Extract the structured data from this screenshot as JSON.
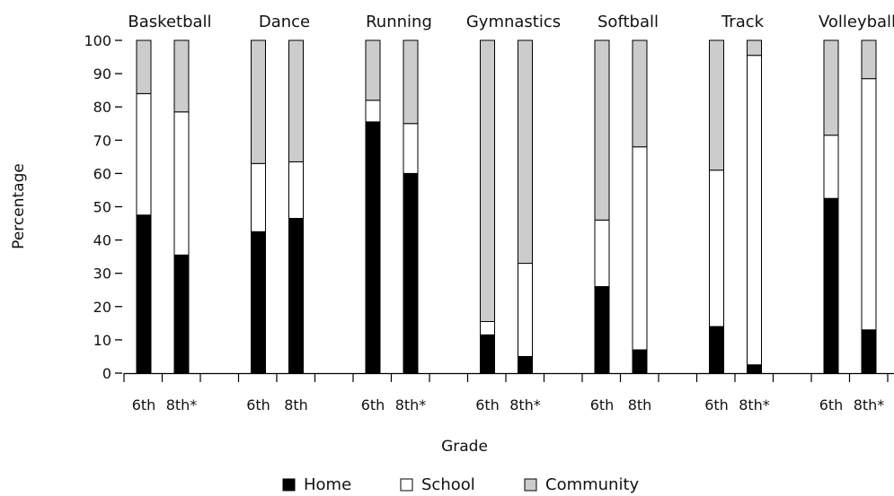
{
  "chart_data": {
    "type": "bar",
    "stacked": true,
    "title": "",
    "xlabel": "Grade",
    "ylabel": "Percentage",
    "ylim": [
      0,
      100
    ],
    "yticks": [
      0,
      10,
      20,
      30,
      40,
      50,
      60,
      70,
      80,
      90,
      100
    ],
    "grid": false,
    "legend_position": "bottom",
    "series": [
      {
        "name": "Home",
        "color": "#000000"
      },
      {
        "name": "School",
        "color": "#ffffff"
      },
      {
        "name": "Community",
        "color": "#cccccc"
      }
    ],
    "groups": [
      {
        "sport": "Basketball",
        "bars": [
          {
            "grade": "6th",
            "home": 47.5,
            "school": 36.5,
            "community": 16
          },
          {
            "grade": "8th*",
            "home": 35.5,
            "school": 43,
            "community": 21.5
          }
        ]
      },
      {
        "sport": "Dance",
        "bars": [
          {
            "grade": "6th",
            "home": 42.5,
            "school": 20.5,
            "community": 37
          },
          {
            "grade": "8th",
            "home": 46.5,
            "school": 17,
            "community": 36.5
          }
        ]
      },
      {
        "sport": "Running",
        "bars": [
          {
            "grade": "6th",
            "home": 75.5,
            "school": 6.5,
            "community": 18
          },
          {
            "grade": "8th*",
            "home": 60,
            "school": 15,
            "community": 25
          }
        ]
      },
      {
        "sport": "Gymnastics",
        "bars": [
          {
            "grade": "6th",
            "home": 11.5,
            "school": 4,
            "community": 84.5
          },
          {
            "grade": "8th*",
            "home": 5,
            "school": 28,
            "community": 67
          }
        ]
      },
      {
        "sport": "Softball",
        "bars": [
          {
            "grade": "6th",
            "home": 26,
            "school": 20,
            "community": 54
          },
          {
            "grade": "8th",
            "home": 7,
            "school": 61,
            "community": 32
          }
        ]
      },
      {
        "sport": "Track",
        "bars": [
          {
            "grade": "6th",
            "home": 14,
            "school": 47,
            "community": 39
          },
          {
            "grade": "8th*",
            "home": 2.5,
            "school": 93,
            "community": 4.5
          }
        ]
      },
      {
        "sport": "Volleyball",
        "bars": [
          {
            "grade": "6th",
            "home": 52.5,
            "school": 19,
            "community": 28.5
          },
          {
            "grade": "8th*",
            "home": 13,
            "school": 75.5,
            "community": 11.5
          }
        ]
      }
    ]
  }
}
